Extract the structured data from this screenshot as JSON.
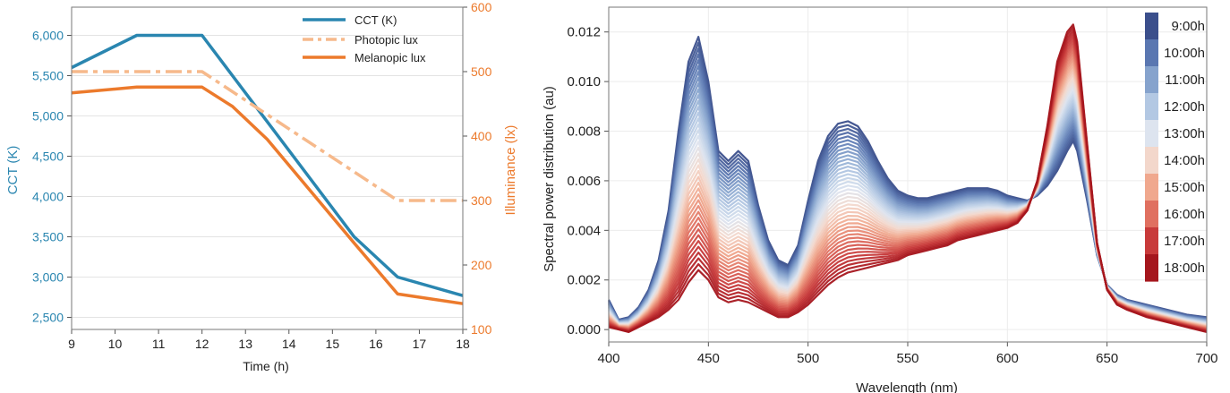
{
  "chart_data": [
    {
      "type": "line",
      "xlabel": "Time (h)",
      "ylabel": "CCT (K)",
      "y2label": "Illuminance (lx)",
      "xlim": [
        9,
        18
      ],
      "ylim": [
        2350,
        6350
      ],
      "y2lim": [
        100,
        600
      ],
      "x_ticks": [
        9,
        10,
        11,
        12,
        13,
        14,
        15,
        16,
        17,
        18
      ],
      "y_ticks": [
        2500,
        3000,
        3500,
        4000,
        4500,
        5000,
        5500,
        6000
      ],
      "y_tick_labels": [
        "2,500",
        "3,000",
        "3,500",
        "4,000",
        "4,500",
        "5,000",
        "5,500",
        "6,000"
      ],
      "y2_ticks": [
        100,
        200,
        300,
        400,
        500,
        600
      ],
      "grid": "horizontal",
      "legend_position": "top-right",
      "series": [
        {
          "name": "CCT (K)",
          "axis": "left",
          "color": "#2a86b0",
          "style": "solid",
          "x": [
            9,
            10.5,
            12,
            15.5,
            16.5,
            18
          ],
          "y": [
            5600,
            6000,
            6000,
            3500,
            3000,
            2770
          ]
        },
        {
          "name": "Photopic lux",
          "axis": "right",
          "color": "#f6b98b",
          "style": "dashdot",
          "x": [
            9,
            12,
            16.5,
            18
          ],
          "y": [
            500,
            500,
            300,
            300
          ]
        },
        {
          "name": "Melanopic lux",
          "axis": "right",
          "color": "#ec7a2c",
          "style": "solid",
          "x": [
            9,
            10.5,
            12,
            12.7,
            13.5,
            15.5,
            16.5,
            18
          ],
          "y": [
            467,
            476,
            476,
            446,
            395,
            234,
            155,
            140
          ]
        }
      ]
    },
    {
      "type": "line",
      "xlabel": "Wavelength (nm)",
      "ylabel": "Spectral power distribution (au)",
      "xlim": [
        400,
        700
      ],
      "ylim": [
        -0.0005,
        0.013
      ],
      "x_ticks": [
        400,
        450,
        500,
        550,
        600,
        650,
        700
      ],
      "y_ticks": [
        0,
        0.002,
        0.004,
        0.006,
        0.008,
        0.01,
        0.012
      ],
      "y_tick_labels": [
        "0.000",
        "0.002",
        "0.004",
        "0.006",
        "0.008",
        "0.010",
        "0.012"
      ],
      "grid": "both",
      "legend_position": "right",
      "colorbar": {
        "labels": [
          "9:00h",
          "10:00h",
          "11:00h",
          "12:00h",
          "13:00h",
          "14:00h",
          "15:00h",
          "16:00h",
          "17:00h",
          "18:00h"
        ],
        "colors": [
          "#3b4f8c",
          "#5a77b1",
          "#86a3cd",
          "#b3c8e3",
          "#dde4ef",
          "#f3d7cb",
          "#f0a88e",
          "#e07060",
          "#c83a3a",
          "#a5161d"
        ]
      },
      "wavelengths": [
        400,
        405,
        410,
        415,
        420,
        425,
        430,
        435,
        440,
        445,
        450,
        455,
        460,
        465,
        470,
        475,
        480,
        485,
        490,
        495,
        500,
        505,
        510,
        515,
        520,
        525,
        530,
        535,
        540,
        545,
        550,
        555,
        560,
        565,
        570,
        575,
        580,
        585,
        590,
        595,
        600,
        605,
        610,
        615,
        620,
        625,
        630,
        633,
        635,
        640,
        645,
        650,
        655,
        660,
        670,
        680,
        690,
        700
      ],
      "series": [
        {
          "name": "9:00h",
          "color": "#3b4f8c",
          "values": [
            0.0012,
            0.0004,
            0.0005,
            0.0009,
            0.0016,
            0.0028,
            0.0048,
            0.008,
            0.0108,
            0.0118,
            0.01,
            0.0072,
            0.0068,
            0.0072,
            0.0068,
            0.005,
            0.0036,
            0.0028,
            0.0026,
            0.0034,
            0.0052,
            0.0068,
            0.0078,
            0.0083,
            0.0084,
            0.0082,
            0.0076,
            0.0068,
            0.0061,
            0.0056,
            0.0054,
            0.0053,
            0.0053,
            0.0054,
            0.0055,
            0.0056,
            0.0057,
            0.0057,
            0.0057,
            0.0056,
            0.0054,
            0.0053,
            0.0052,
            0.0054,
            0.0058,
            0.0064,
            0.0072,
            0.0076,
            0.0072,
            0.0052,
            0.003,
            0.0018,
            0.0014,
            0.0012,
            0.001,
            0.0008,
            0.0006,
            0.0005
          ]
        },
        {
          "name": "18:00h",
          "color": "#a5161d",
          "values": [
            0.0001,
            0.0,
            -0.0001,
            0.0001,
            0.0003,
            0.0005,
            0.0008,
            0.0012,
            0.0019,
            0.0024,
            0.002,
            0.0013,
            0.0011,
            0.0012,
            0.0011,
            0.0009,
            0.0007,
            0.0005,
            0.0005,
            0.0007,
            0.001,
            0.0014,
            0.0018,
            0.0021,
            0.0023,
            0.0024,
            0.0025,
            0.0026,
            0.0027,
            0.0028,
            0.003,
            0.0031,
            0.0032,
            0.0033,
            0.0034,
            0.0036,
            0.0037,
            0.0038,
            0.0039,
            0.004,
            0.0041,
            0.0043,
            0.0048,
            0.006,
            0.0082,
            0.0108,
            0.012,
            0.0123,
            0.0116,
            0.0075,
            0.0035,
            0.0016,
            0.001,
            0.0008,
            0.0005,
            0.0003,
            0.0001,
            -0.0001
          ]
        }
      ]
    }
  ]
}
